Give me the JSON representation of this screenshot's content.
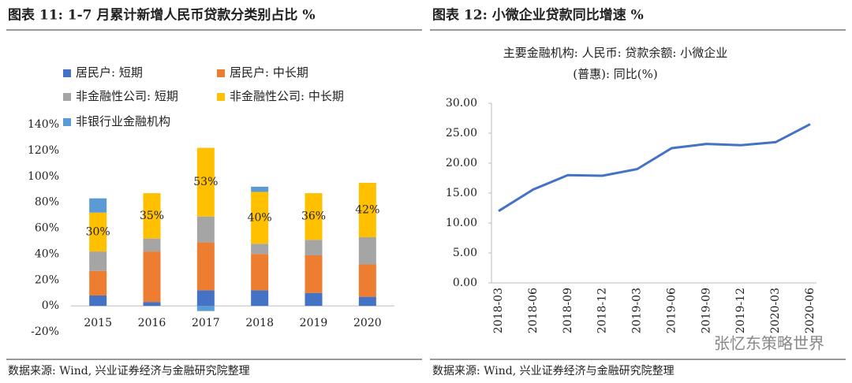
{
  "chart_data": [
    {
      "type": "stacked_bar",
      "title": "图表 11: 1-7 月累计新增人民币贷款分类别占比 %",
      "source": "数据来源: Wind, 兴业证券经济与金融研究院整理",
      "categories": [
        "2015",
        "2016",
        "2017",
        "2018",
        "2019",
        "2020"
      ],
      "series": [
        {
          "name": "居民户: 短期",
          "color": "#4472c4",
          "values": [
            8,
            3,
            12,
            12,
            10,
            7
          ]
        },
        {
          "name": "居民户: 中长期",
          "color": "#ed7d31",
          "values": [
            19,
            39,
            37,
            28,
            29,
            25
          ]
        },
        {
          "name": "非金融性公司: 短期",
          "color": "#a5a5a5",
          "values": [
            15,
            10,
            20,
            8,
            12,
            21
          ]
        },
        {
          "name": "非金融性公司: 中长期",
          "color": "#ffc000",
          "values": [
            30,
            35,
            53,
            40,
            36,
            42
          ],
          "value_labels": [
            "30%",
            "35%",
            "53%",
            "40%",
            "36%",
            "42%"
          ]
        },
        {
          "name": "非银行业金融机构",
          "color": "#5b9bd5",
          "values": [
            11,
            0,
            -4,
            4,
            0,
            0
          ]
        }
      ],
      "ylim": [
        -20,
        140
      ],
      "yticks": [
        {
          "value": -20,
          "label": "-20%"
        },
        {
          "value": 0,
          "label": "0%"
        },
        {
          "value": 20,
          "label": "20%"
        },
        {
          "value": 40,
          "label": "40%"
        },
        {
          "value": 60,
          "label": "60%"
        },
        {
          "value": 80,
          "label": "80%"
        },
        {
          "value": 100,
          "label": "100%"
        },
        {
          "value": 120,
          "label": "120%"
        },
        {
          "value": 140,
          "label": "140%"
        }
      ],
      "grid": false,
      "legend": "top-left"
    },
    {
      "type": "line",
      "title": "图表 12: 小微企业贷款同比增速 %",
      "subtitle": [
        "主要金融机构: 人民币: 贷款余额: 小微企业",
        "(普惠): 同比(%)"
      ],
      "source": "数据来源: Wind, 兴业证券经济与金融研究院整理",
      "categories": [
        "2018-03",
        "2018-06",
        "2018-09",
        "2018-12",
        "2019-03",
        "2019-06",
        "2019-09",
        "2019-12",
        "2020-03",
        "2020-06"
      ],
      "series": [
        {
          "name": "同比",
          "color": "#4472c4",
          "values": [
            12.0,
            15.6,
            18.0,
            17.9,
            19.0,
            22.5,
            23.2,
            23.0,
            23.5,
            26.5
          ]
        }
      ],
      "ylim": [
        0,
        30
      ],
      "yticks": [
        {
          "value": 0,
          "label": "0.00"
        },
        {
          "value": 5,
          "label": "5.00"
        },
        {
          "value": 10,
          "label": "10.00"
        },
        {
          "value": 15,
          "label": "15.00"
        },
        {
          "value": 20,
          "label": "20.00"
        },
        {
          "value": 25,
          "label": "25.00"
        },
        {
          "value": 30,
          "label": "30.00"
        }
      ],
      "grid": false
    }
  ],
  "watermark": "张忆东策略世界"
}
